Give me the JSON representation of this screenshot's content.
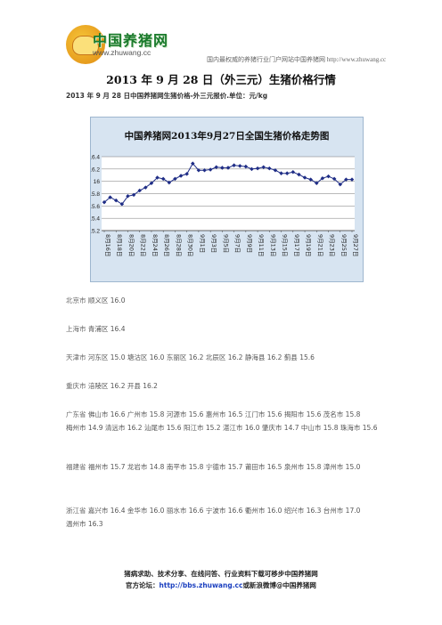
{
  "header": {
    "logo_text": "中国养猪网",
    "logo_url": "www.zhuwang.cc",
    "tagline": "国内最权威的养猪行业门户网站中国养猪网 http://www.zhuwang.cc"
  },
  "title": "2013 年 9 月 28 日（外三元）生猪价格行情",
  "subtitle": "2013 年 9 月 28 日中国养猪网生猪价格-外三元报价.单位：元/kg",
  "chart_data": {
    "type": "line",
    "title": "中国养猪网2013年9月27日全国生猪价格走势图",
    "xlabel": "",
    "ylabel": "",
    "ylim": [
      15.2,
      16.4
    ],
    "yticks": [
      "16.4",
      "16.2",
      "16",
      "15.8",
      "15.6",
      "15.4",
      "15.2"
    ],
    "tick_labels": [
      "8月16日",
      "8月18日",
      "8月20日",
      "8月22日",
      "8月24日",
      "8月26日",
      "8月28日",
      "8月30日",
      "9月1日",
      "9月3日",
      "9月5日",
      "9月7日",
      "9月9日",
      "9月11日",
      "9月13日",
      "9月15日",
      "9月17日",
      "9月19日",
      "9月21日",
      "9月23日",
      "9月25日",
      "9月27日"
    ],
    "x": [
      "8月16日",
      "8月17日",
      "8月18日",
      "8月19日",
      "8月20日",
      "8月21日",
      "8月22日",
      "8月23日",
      "8月24日",
      "8月25日",
      "8月26日",
      "8月27日",
      "8月28日",
      "8月29日",
      "8月30日",
      "8月31日",
      "9月1日",
      "9月2日",
      "9月3日",
      "9月4日",
      "9月5日",
      "9月6日",
      "9月7日",
      "9月8日",
      "9月9日",
      "9月10日",
      "9月11日",
      "9月12日",
      "9月13日",
      "9月14日",
      "9月15日",
      "9月16日",
      "9月17日",
      "9月18日",
      "9月19日",
      "9月20日",
      "9月21日",
      "9月22日",
      "9月23日",
      "9月24日",
      "9月25日",
      "9月26日",
      "9月27日"
    ],
    "values": [
      15.66,
      15.74,
      15.69,
      15.63,
      15.76,
      15.78,
      15.85,
      15.9,
      15.97,
      16.06,
      16.04,
      15.98,
      16.04,
      16.09,
      16.12,
      16.29,
      16.18,
      16.18,
      16.19,
      16.23,
      16.22,
      16.22,
      16.26,
      16.25,
      16.24,
      16.2,
      16.21,
      16.23,
      16.21,
      16.18,
      16.13,
      16.13,
      16.15,
      16.11,
      16.06,
      16.03,
      15.97,
      16.05,
      16.08,
      16.04,
      15.95,
      16.03,
      16.03
    ],
    "grid": true,
    "line_color": "#1f2d86"
  },
  "regions": [
    {
      "prov": "北京市",
      "items": [
        "顺义区 16.0"
      ]
    },
    {
      "prov": "上海市",
      "items": [
        "青浦区 16.4"
      ]
    },
    {
      "prov": "天津市",
      "items": [
        "河东区 15.0",
        "塘沽区 16.0",
        "东丽区 16.2",
        "北辰区 16.2",
        "静海县 16.2",
        "蓟县 15.6"
      ]
    },
    {
      "prov": "重庆市",
      "items": [
        "涪陵区 16.2",
        "开县 16.2"
      ]
    },
    {
      "prov": "广东省",
      "items": [
        "佛山市 16.6",
        "广州市 15.8",
        "河源市 15.6",
        "惠州市 16.5",
        "江门市 15.6",
        "揭阳市 15.6",
        "茂名市 15.8",
        "梅州市 14.9",
        "清远市 16.2",
        "汕尾市 15.6",
        "阳江市 15.2",
        "湛江市 16.0",
        "肇庆市 14.7",
        "中山市 15.8",
        "珠海市 15.6"
      ]
    },
    {
      "prov": "福建省",
      "items": [
        "福州市 15.7",
        "龙岩市 14.8",
        "南平市 15.8",
        "宁德市 15.7",
        "莆田市 16.5",
        "泉州市 15.8",
        "漳州市 15.0"
      ]
    },
    {
      "prov": "浙江省",
      "items": [
        "嘉兴市 16.4",
        "金华市 16.0",
        "丽水市 16.6",
        "宁波市 16.6",
        "衢州市 16.0",
        "绍兴市 16.3",
        "台州市 17.0",
        "温州市 16.3"
      ]
    }
  ],
  "footer": {
    "line1": "猪病求助、技术分享、在线问答、行业资料下载可移步中国养猪网",
    "line2_prefix": "官方论坛",
    "line2_link": "http://bbs.zhuwang.cc",
    "line2_suffix": "或新浪微博@中国养猪网"
  }
}
